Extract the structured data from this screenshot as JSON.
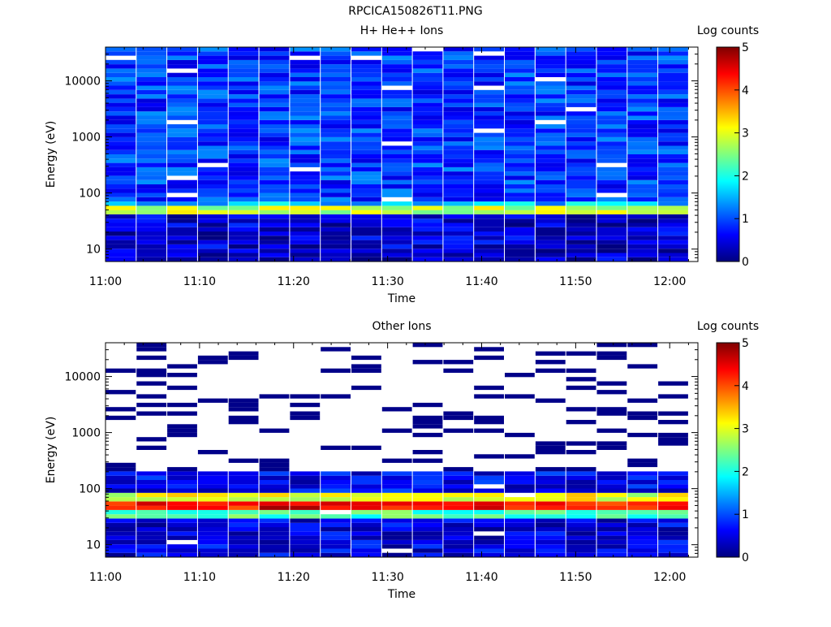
{
  "figure_title": "RPCICA150826T11.PNG",
  "colormap": [
    "#00007f",
    "#0000ff",
    "#007fff",
    "#00ffff",
    "#7fff7f",
    "#ffff00",
    "#ff7f00",
    "#ff0000",
    "#7f0000"
  ],
  "chart_data": [
    {
      "type": "heatmap",
      "title": "H+ He++ Ions",
      "xlabel": "Time",
      "ylabel": "Energy (eV)",
      "x_ticks": [
        "11:00",
        "11:10",
        "11:20",
        "11:30",
        "11:40",
        "11:50",
        "12:00"
      ],
      "y_ticks": [
        "10",
        "100",
        "1000",
        "10000"
      ],
      "y_scale": "log",
      "xlim": [
        "11:00",
        "12:03"
      ],
      "ylim": [
        6,
        40000
      ],
      "colorbar_label": "Log counts",
      "colorbar_ticks": [
        "0",
        "1",
        "2",
        "3",
        "4",
        "5"
      ],
      "colorbar_range": [
        0,
        5
      ],
      "time_start": "11:00",
      "time_end": "12:02",
      "n_time_bins": 19,
      "energy_range_ev": [
        6,
        40000
      ],
      "n_energy_bins": 50,
      "features": [
        {
          "energy_ev": [
            40,
            60
          ],
          "level": 2.8,
          "note": "peak band"
        },
        {
          "energy_ev": [
            60,
            75
          ],
          "level": 1.6
        },
        {
          "energy_ev": [
            6,
            40
          ],
          "level": 0.4
        },
        {
          "energy_ev": [
            75,
            40000
          ],
          "level": 0.9
        }
      ]
    },
    {
      "type": "heatmap",
      "title": "Other Ions",
      "xlabel": "Time",
      "ylabel": "Energy (eV)",
      "x_ticks": [
        "11:00",
        "11:10",
        "11:20",
        "11:30",
        "11:40",
        "11:50",
        "12:00"
      ],
      "y_ticks": [
        "10",
        "100",
        "1000",
        "10000"
      ],
      "y_scale": "log",
      "xlim": [
        "11:00",
        "12:03"
      ],
      "ylim": [
        6,
        40000
      ],
      "colorbar_label": "Log counts",
      "colorbar_ticks": [
        "0",
        "1",
        "2",
        "3",
        "4",
        "5"
      ],
      "colorbar_range": [
        0,
        5
      ],
      "time_start": "11:00",
      "time_end": "12:02",
      "n_time_bins": 19,
      "energy_range_ev": [
        6,
        40000
      ],
      "n_energy_bins": 50,
      "features": [
        {
          "energy_ev": [
            40,
            58
          ],
          "level": 4.4,
          "note": "peak band"
        },
        {
          "energy_ev": [
            58,
            80
          ],
          "level": 3.0
        },
        {
          "energy_ev": [
            80,
            200
          ],
          "level": 0.6
        },
        {
          "energy_ev": [
            30,
            40
          ],
          "level": 2.2
        },
        {
          "energy_ev": [
            6,
            30
          ],
          "level": 0.5
        },
        {
          "energy_ev": [
            200,
            40000
          ],
          "level": 0.1,
          "note": "sparse"
        }
      ]
    }
  ]
}
